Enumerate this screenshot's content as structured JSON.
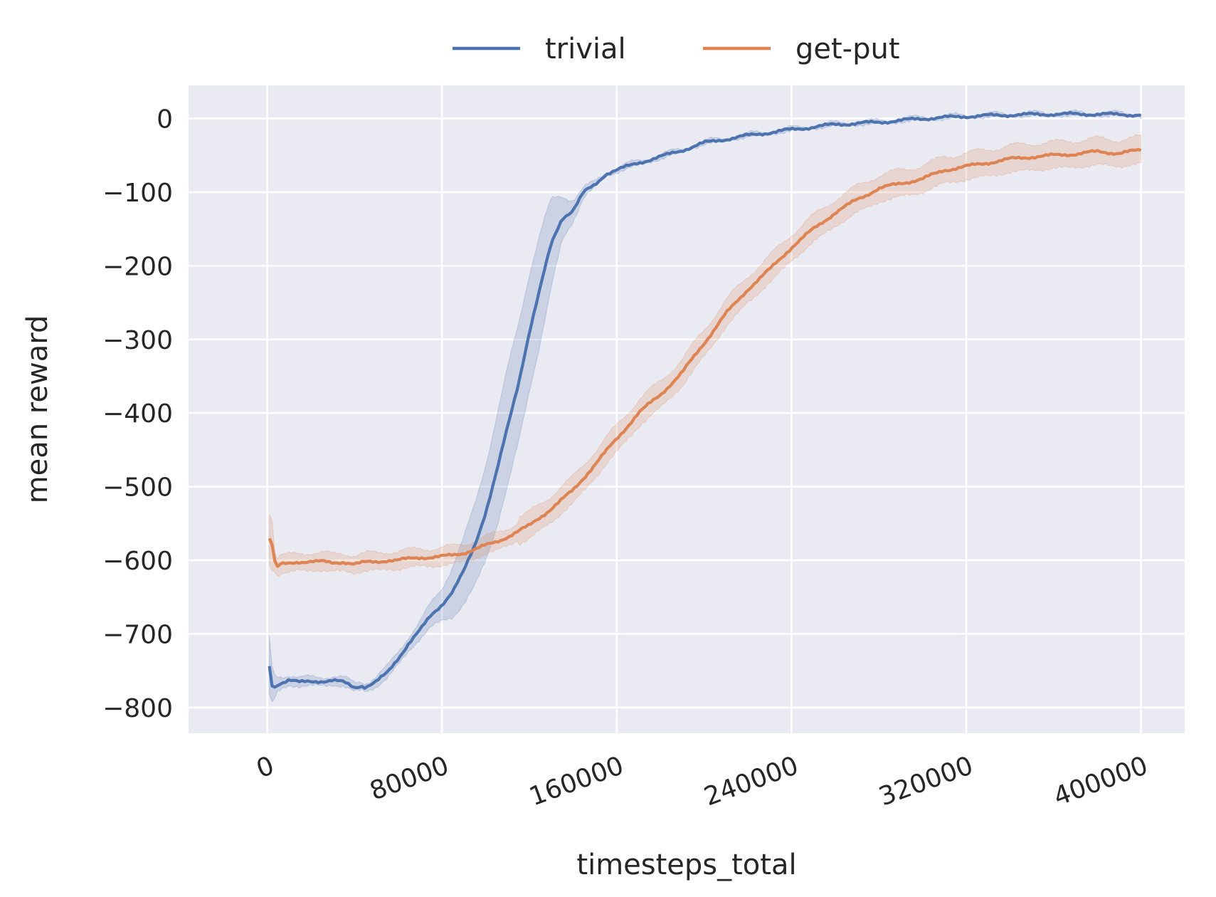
{
  "chart_data": {
    "type": "line",
    "xlabel": "timesteps_total",
    "ylabel": "mean reward",
    "xlim": [
      -36000,
      420000
    ],
    "ylim": [
      -835,
      45
    ],
    "xticks": [
      0,
      80000,
      160000,
      240000,
      320000,
      400000
    ],
    "xtick_labels": [
      "0",
      "80000",
      "160000",
      "240000",
      "320000",
      "400000"
    ],
    "yticks": [
      0,
      -100,
      -200,
      -300,
      -400,
      -500,
      -600,
      -700,
      -800
    ],
    "ytick_labels": [
      "0",
      "−100",
      "−200",
      "−300",
      "−400",
      "−500",
      "−600",
      "−700",
      "−800"
    ],
    "grid": true,
    "legend_position": "top-center",
    "background": "#eaeaf2",
    "series": [
      {
        "name": "trivial",
        "color": "#4c72b0",
        "x": [
          1000,
          2500,
          5000,
          10000,
          15000,
          20000,
          25000,
          30000,
          35000,
          38000,
          40000,
          43000,
          45000,
          50000,
          55000,
          60000,
          65000,
          70000,
          75000,
          80000,
          85000,
          90000,
          95000,
          100000,
          105000,
          110000,
          115000,
          120000,
          125000,
          130000,
          135000,
          140000,
          145000,
          150000,
          155000,
          160000,
          165000,
          170000,
          180000,
          190000,
          200000,
          210000,
          220000,
          240000,
          260000,
          280000,
          300000,
          320000,
          340000,
          360000,
          380000,
          400000
        ],
        "y": [
          -745,
          -775,
          -768,
          -762,
          -766,
          -765,
          -764,
          -763,
          -766,
          -770,
          -773,
          -770,
          -772,
          -765,
          -753,
          -733,
          -712,
          -695,
          -675,
          -660,
          -642,
          -615,
          -580,
          -535,
          -480,
          -420,
          -360,
          -290,
          -230,
          -170,
          -135,
          -125,
          -100,
          -90,
          -75,
          -70,
          -65,
          -60,
          -52,
          -43,
          -33,
          -28,
          -23,
          -15,
          -8,
          -5,
          0,
          3,
          5,
          6,
          6,
          5
        ],
        "band_half_width": [
          40,
          20,
          10,
          7,
          6,
          6,
          6,
          6,
          6,
          6,
          6,
          6,
          6,
          7,
          8,
          9,
          10,
          12,
          16,
          22,
          35,
          45,
          55,
          65,
          75,
          80,
          80,
          80,
          75,
          60,
          30,
          15,
          6,
          4,
          3,
          3,
          3,
          3,
          3,
          2,
          2,
          2,
          2,
          2,
          2,
          2,
          2,
          2,
          2,
          2,
          2,
          2
        ]
      },
      {
        "name": "get-put",
        "color": "#dd8452",
        "x": [
          1000,
          2500,
          4000,
          6000,
          10000,
          15000,
          20000,
          25000,
          30000,
          35000,
          40000,
          45000,
          50000,
          55000,
          60000,
          65000,
          70000,
          75000,
          80000,
          85000,
          90000,
          95000,
          100000,
          105000,
          110000,
          120000,
          130000,
          140000,
          150000,
          160000,
          170000,
          180000,
          190000,
          200000,
          210000,
          220000,
          230000,
          240000,
          250000,
          260000,
          270000,
          280000,
          290000,
          300000,
          310000,
          320000,
          330000,
          340000,
          350000,
          360000,
          370000,
          380000,
          390000,
          400000
        ],
        "y": [
          -570,
          -580,
          -612,
          -606,
          -605,
          -602,
          -601,
          -602,
          -604,
          -602,
          -605,
          -603,
          -602,
          -600,
          -600,
          -598,
          -596,
          -596,
          -595,
          -593,
          -590,
          -585,
          -580,
          -575,
          -568,
          -553,
          -530,
          -505,
          -470,
          -435,
          -400,
          -375,
          -345,
          -305,
          -265,
          -232,
          -205,
          -175,
          -150,
          -128,
          -110,
          -95,
          -88,
          -82,
          -70,
          -65,
          -60,
          -55,
          -52,
          -50,
          -48,
          -45,
          -47,
          -43
        ]
      }
    ]
  }
}
